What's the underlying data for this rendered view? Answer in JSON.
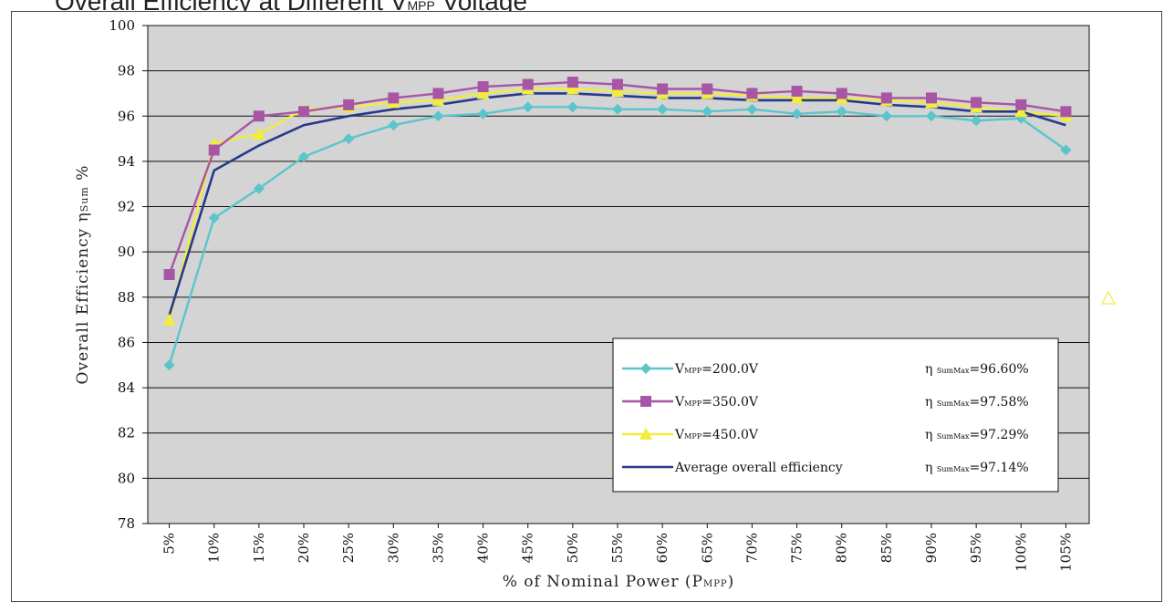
{
  "chart_data": {
    "type": "line",
    "title": "Overall Efficiency at Different V",
    "title_sub": "MPP",
    "title_suffix": " Voltage",
    "xlabel": "% of Nominal Power (P",
    "xlabel_sub": "MPP",
    "xlabel_suffix": ")",
    "ylabel": "Overall Efficiency η",
    "ylabel_sub": "Sum",
    "ylabel_suffix": " %",
    "ylim": [
      78,
      100
    ],
    "ytick_step": 2,
    "grid": true,
    "legend_position": "bottom-right",
    "plot_background": "#d4d4d4",
    "categories": [
      "5%",
      "10%",
      "15%",
      "20%",
      "25%",
      "30%",
      "35%",
      "40%",
      "45%",
      "50%",
      "55%",
      "60%",
      "65%",
      "70%",
      "75%",
      "80%",
      "85%",
      "90%",
      "95%",
      "100%",
      "105%"
    ],
    "series": [
      {
        "name": "V",
        "name_sub": "MPP",
        "name_suffix": "=200.0V",
        "stat_prefix": "η",
        "stat_sub": "SumMax",
        "stat_value": "=96.60%",
        "color": "#5bc5cc",
        "marker": "diamond",
        "values": [
          85.0,
          91.5,
          92.8,
          94.2,
          95.0,
          95.6,
          96.0,
          96.1,
          96.4,
          96.4,
          96.3,
          96.3,
          96.2,
          96.3,
          96.1,
          96.2,
          96.0,
          96.0,
          95.8,
          95.9,
          94.5
        ]
      },
      {
        "name": "V",
        "name_sub": "MPP",
        "name_suffix": "=350.0V",
        "stat_prefix": "η",
        "stat_sub": "SumMax",
        "stat_value": "=97.58%",
        "color": "#a855a6",
        "marker": "square",
        "values": [
          89.0,
          94.5,
          96.0,
          96.2,
          96.5,
          96.8,
          97.0,
          97.3,
          97.4,
          97.5,
          97.4,
          97.2,
          97.2,
          97.0,
          97.1,
          97.0,
          96.8,
          96.8,
          96.6,
          96.5,
          96.2
        ]
      },
      {
        "name": "V",
        "name_sub": "MPP",
        "name_suffix": "=450.0V",
        "stat_prefix": "η",
        "stat_sub": "SumMax",
        "stat_value": "=97.29%",
        "color": "#f2ec3c",
        "marker": "triangle",
        "values": [
          87.0,
          94.8,
          95.2,
          96.3,
          96.4,
          96.6,
          96.7,
          97.0,
          97.2,
          97.2,
          97.1,
          97.0,
          97.0,
          96.9,
          96.8,
          96.8,
          96.7,
          96.6,
          96.4,
          96.2,
          96.0
        ]
      },
      {
        "name": "Average overall efficiency",
        "stat_prefix": "η",
        "stat_sub": "SumMax",
        "stat_value": "=97.14%",
        "color": "#263a8c",
        "marker": "none",
        "values": [
          87.2,
          93.6,
          94.7,
          95.6,
          96.0,
          96.3,
          96.5,
          96.8,
          97.0,
          97.0,
          96.9,
          96.8,
          96.8,
          96.7,
          96.7,
          96.7,
          96.5,
          96.4,
          96.2,
          96.2,
          95.6
        ]
      }
    ],
    "stray_marker": {
      "shape": "triangle-outline",
      "color": "#f2ec3c"
    }
  }
}
